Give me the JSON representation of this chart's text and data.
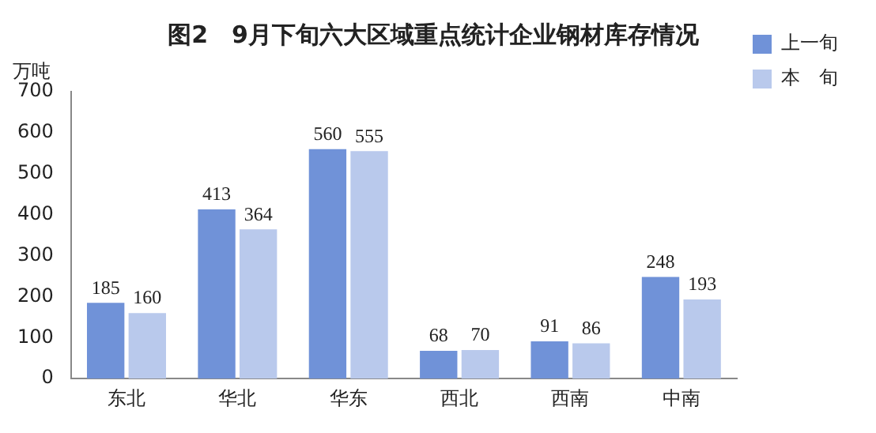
{
  "chart_data": {
    "type": "bar",
    "title": "图2　9月下旬六大区域重点统计企业钢材库存情况",
    "ylabel": "万吨",
    "categories": [
      "东北",
      "华北",
      "华东",
      "西北",
      "西南",
      "中南"
    ],
    "series": [
      {
        "name": "上一旬",
        "color": "#7092d8",
        "values": [
          185,
          413,
          560,
          68,
          91,
          248
        ]
      },
      {
        "name": "本　旬",
        "color": "#b9c9ec",
        "values": [
          160,
          364,
          555,
          70,
          86,
          193
        ]
      }
    ],
    "ylim": [
      0,
      700
    ],
    "yticks": [
      0,
      100,
      200,
      300,
      400,
      500,
      600,
      700
    ],
    "grid": false,
    "legend": "top right",
    "data_labels": true
  }
}
